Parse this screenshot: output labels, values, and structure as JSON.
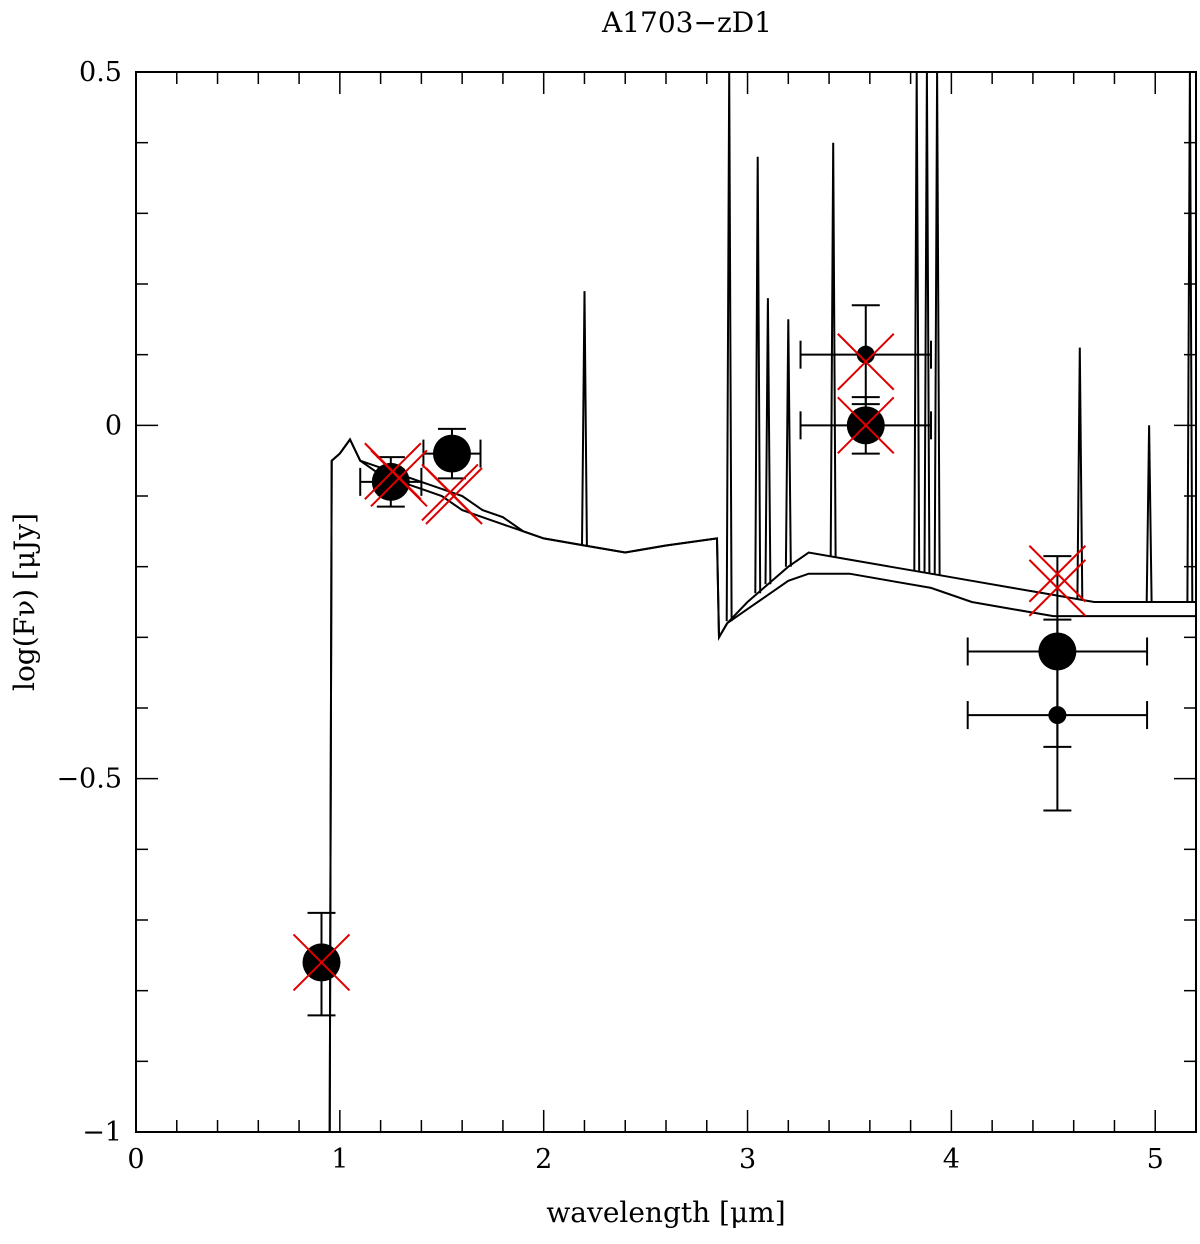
{
  "chart_data": {
    "type": "scatter",
    "title": "A1703−zD1",
    "xlabel": "wavelength [μm]",
    "ylabel": "log(Fν) [μJy]",
    "xlim": [
      0,
      5.2
    ],
    "ylim": [
      -1,
      0.5
    ],
    "xticks": [
      0,
      1,
      2,
      3,
      4,
      5
    ],
    "xtick_labels": [
      "0",
      "1",
      "2",
      "3",
      "4",
      "5"
    ],
    "yticks": [
      -1,
      -0.5,
      0,
      0.5
    ],
    "ytick_labels": [
      "−1",
      "−0.5",
      "0",
      "0.5"
    ],
    "grid": false,
    "colors": {
      "observed": "#000000",
      "model": "#dd0000",
      "spectrum": "#000000"
    },
    "series": [
      {
        "marker": "filled-circle-large",
        "points": [
          {
            "x": 0.91,
            "y": -0.76,
            "xerr": 0.0,
            "yerr_low": 0.075,
            "yerr_high": 0.07
          },
          {
            "x": 1.25,
            "y": -0.08,
            "xerr": 0.15,
            "yerr_low": 0.035,
            "yerr_high": 0.035
          },
          {
            "x": 1.55,
            "y": -0.04,
            "xerr": 0.14,
            "yerr_low": 0.035,
            "yerr_high": 0.035
          },
          {
            "x": 3.58,
            "y": 0.0,
            "xerr": 0.32,
            "yerr_low": 0.04,
            "yerr_high": 0.04
          },
          {
            "x": 4.52,
            "y": -0.32,
            "xerr": 0.44,
            "yerr_low": 0.135,
            "yerr_high": 0.135
          }
        ]
      },
      {
        "marker": "filled-circle-small",
        "points": [
          {
            "x": 3.58,
            "y": 0.1,
            "xerr": 0.32,
            "yerr_low": 0.07,
            "yerr_high": 0.07
          },
          {
            "x": 4.52,
            "y": -0.41,
            "xerr": 0.44,
            "yerr_low": 0.135,
            "yerr_high": 0.135
          }
        ]
      },
      {
        "marker": "red-cross",
        "points": [
          {
            "x": 0.91,
            "y": -0.76
          },
          {
            "x": 1.26,
            "y": -0.065
          },
          {
            "x": 1.29,
            "y": -0.075
          },
          {
            "x": 1.54,
            "y": -0.095
          },
          {
            "x": 1.56,
            "y": -0.1
          },
          {
            "x": 3.58,
            "y": 0.09
          },
          {
            "x": 3.58,
            "y": 0.0
          },
          {
            "x": 4.52,
            "y": -0.21
          },
          {
            "x": 4.52,
            "y": -0.23
          }
        ]
      },
      {
        "type": "line",
        "points": [
          [
            0.95,
            -1
          ],
          [
            0.96,
            -0.05
          ],
          [
            1.0,
            -0.04
          ],
          [
            1.05,
            -0.02
          ],
          [
            1.1,
            -0.05
          ],
          [
            1.2,
            -0.06
          ],
          [
            1.3,
            -0.07
          ],
          [
            1.4,
            -0.08
          ],
          [
            1.5,
            -0.09
          ],
          [
            1.6,
            -0.1
          ],
          [
            1.7,
            -0.12
          ],
          [
            1.8,
            -0.13
          ],
          [
            1.9,
            -0.15
          ],
          [
            2.0,
            -0.16
          ],
          [
            2.2,
            -0.17
          ],
          [
            2.4,
            -0.18
          ],
          [
            2.6,
            -0.17
          ],
          [
            2.85,
            -0.16
          ],
          [
            2.86,
            -0.3
          ],
          [
            2.9,
            -0.28
          ],
          [
            3.0,
            -0.25
          ],
          [
            3.2,
            -0.2
          ],
          [
            3.3,
            -0.18
          ],
          [
            3.5,
            -0.19
          ],
          [
            3.7,
            -0.2
          ],
          [
            3.9,
            -0.21
          ],
          [
            4.1,
            -0.22
          ],
          [
            4.3,
            -0.23
          ],
          [
            4.5,
            -0.24
          ],
          [
            4.7,
            -0.25
          ],
          [
            5.0,
            -0.25
          ],
          [
            5.2,
            -0.25
          ]
        ]
      },
      {
        "type": "line",
        "points": [
          [
            0.95,
            -1
          ],
          [
            0.96,
            -0.05
          ],
          [
            1.0,
            -0.04
          ],
          [
            1.05,
            -0.02
          ],
          [
            1.1,
            -0.05
          ],
          [
            1.2,
            -0.07
          ],
          [
            1.3,
            -0.08
          ],
          [
            1.4,
            -0.09
          ],
          [
            1.5,
            -0.1
          ],
          [
            1.6,
            -0.12
          ],
          [
            1.7,
            -0.13
          ],
          [
            1.8,
            -0.14
          ],
          [
            1.9,
            -0.15
          ],
          [
            2.0,
            -0.16
          ],
          [
            2.2,
            -0.17
          ],
          [
            2.4,
            -0.18
          ],
          [
            2.6,
            -0.17
          ],
          [
            2.85,
            -0.16
          ],
          [
            2.86,
            -0.3
          ],
          [
            2.9,
            -0.28
          ],
          [
            3.0,
            -0.26
          ],
          [
            3.2,
            -0.22
          ],
          [
            3.3,
            -0.21
          ],
          [
            3.5,
            -0.21
          ],
          [
            3.7,
            -0.22
          ],
          [
            3.9,
            -0.23
          ],
          [
            4.1,
            -0.25
          ],
          [
            4.3,
            -0.26
          ],
          [
            4.5,
            -0.27
          ],
          [
            4.7,
            -0.27
          ],
          [
            5.0,
            -0.27
          ],
          [
            5.2,
            -0.27
          ]
        ]
      }
    ],
    "emission_lines": [
      {
        "x": 2.2,
        "peak": 0.19
      },
      {
        "x": 2.91,
        "peak": 0.5
      },
      {
        "x": 3.05,
        "peak": 0.38
      },
      {
        "x": 3.1,
        "peak": 0.18
      },
      {
        "x": 3.2,
        "peak": 0.15
      },
      {
        "x": 3.42,
        "peak": 0.4
      },
      {
        "x": 3.83,
        "peak": 0.5
      },
      {
        "x": 3.88,
        "peak": 0.5
      },
      {
        "x": 3.93,
        "peak": 0.5
      },
      {
        "x": 4.63,
        "peak": 0.11
      },
      {
        "x": 4.97,
        "peak": 0.0
      },
      {
        "x": 5.17,
        "peak": 0.5
      }
    ]
  }
}
